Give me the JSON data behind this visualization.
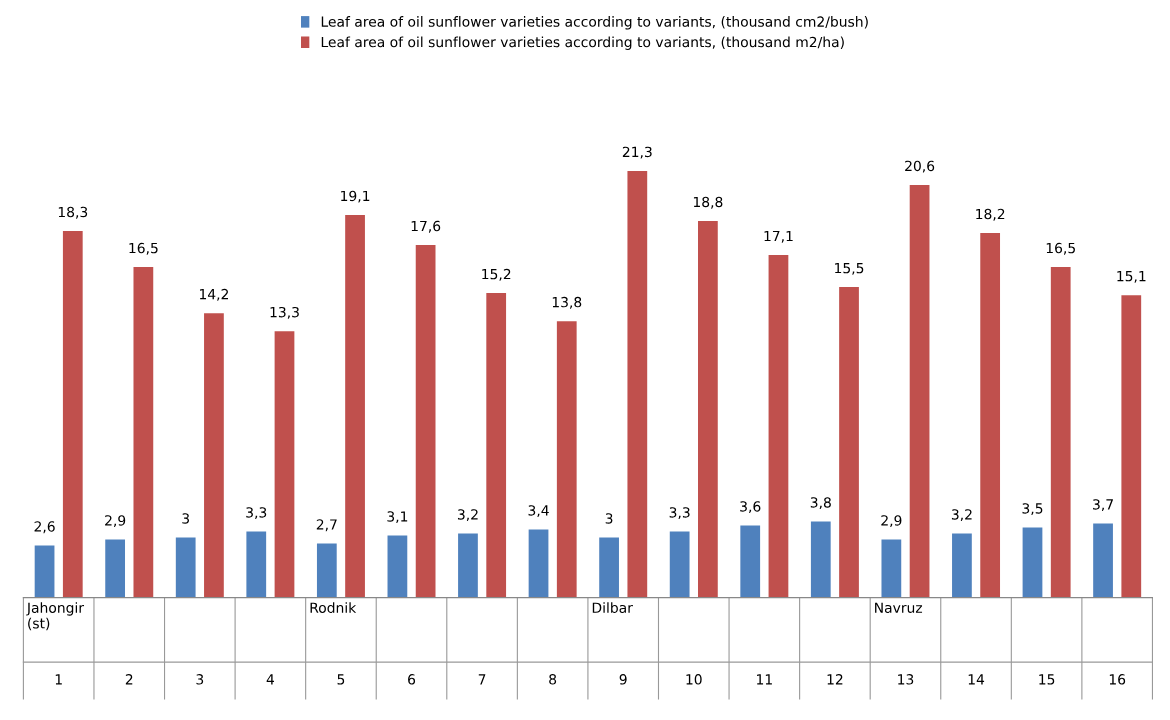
{
  "chart_data": {
    "type": "bar",
    "categories": [
      "Jahongir\n(st)\n1",
      "2",
      "3",
      "4",
      "Rodnik\n5",
      "6",
      "7",
      "8",
      "Dilbar\n9",
      "10",
      "11",
      "12",
      "Navruz\n13",
      "14",
      "15",
      "16"
    ],
    "series": [
      {
        "name": "Leaf area of oil sunflower varieties according to variants, (thousand cm2/bush)",
        "color": "#4f81bd",
        "values": [
          2.6,
          2.9,
          3,
          3.3,
          2.7,
          3.1,
          3.2,
          3.4,
          3,
          3.3,
          3.6,
          3.8,
          2.9,
          3.2,
          3.5,
          3.7
        ],
        "value_labels": [
          "2,6",
          "2,9",
          "3",
          "3,3",
          "2,7",
          "3,1",
          "3,2",
          "3,4",
          "3",
          "3,3",
          "3,6",
          "3,8",
          "2,9",
          "3,2",
          "3,5",
          "3,7"
        ]
      },
      {
        "name": "Leaf area of oil sunflower varieties according to variants, (thousand m2/ha)",
        "color": "#c0504d",
        "values": [
          18.3,
          16.5,
          14.2,
          13.3,
          19.1,
          17.6,
          15.2,
          13.8,
          21.3,
          18.8,
          17.1,
          15.5,
          20.6,
          18.2,
          16.5,
          15.1
        ],
        "value_labels": [
          "18,3",
          "16,5",
          "14,2",
          "13,3",
          "19,1",
          "17,6",
          "15,2",
          "13,8",
          "21,3",
          "18,8",
          "17,1",
          "15,5",
          "20,6",
          "18,2",
          "16,5",
          "15,1"
        ]
      }
    ],
    "legend": "top"
  }
}
